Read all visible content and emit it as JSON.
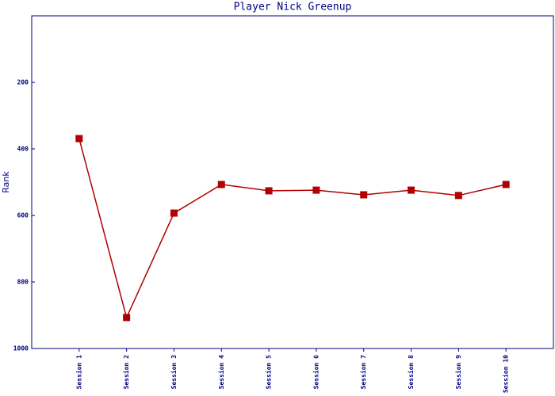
{
  "chart_data": {
    "type": "line",
    "title": "Player Nick Greenup",
    "y_label": "Rank",
    "categories": [
      "Session 1",
      "Session 2",
      "Session 3",
      "Session 4",
      "Session 5",
      "Session 6",
      "Session 7",
      "Session 8",
      "Session 9",
      "Session 10"
    ],
    "values": [
      369,
      907,
      593,
      507,
      526,
      524,
      538,
      524,
      540,
      507
    ],
    "color": "#b00000",
    "ylim": [
      1000,
      0
    ],
    "yticks": [
      200,
      400,
      600,
      800,
      1000
    ],
    "grid": false
  }
}
